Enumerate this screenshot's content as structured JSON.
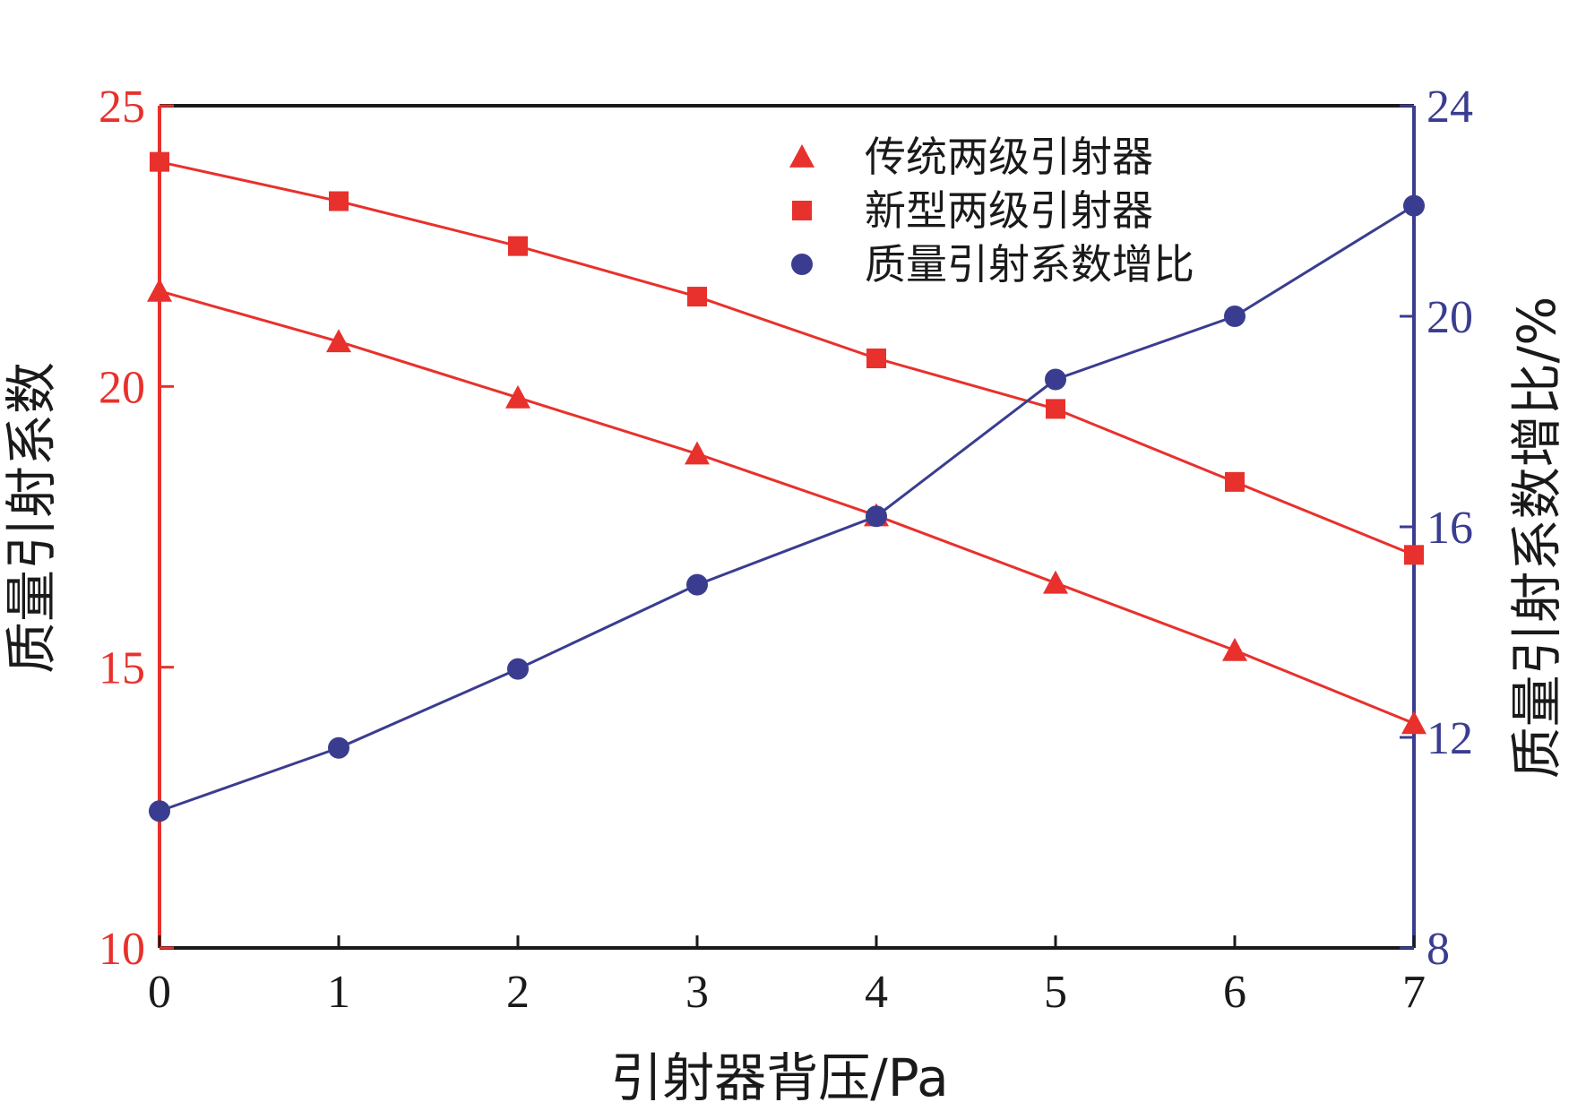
{
  "colors": {
    "left_axis": "#e8312c",
    "right_axis": "#3a3d8f",
    "frame": "#1a1a1a",
    "series_traditional": "#e8312c",
    "series_new": "#e8312c",
    "series_ratio": "#3a3d8f"
  },
  "chart_data": {
    "type": "line",
    "title": "",
    "xlabel": "引射器背压/Pa",
    "ylabel_left": "质量引射系数",
    "ylabel_right": "质量引射系数增比/%",
    "x": [
      0,
      1,
      2,
      3,
      4,
      5,
      6,
      7
    ],
    "xlim": [
      0,
      7
    ],
    "ylim_left": [
      10,
      25
    ],
    "ylim_right": [
      8,
      24
    ],
    "x_ticks": [
      "0",
      "1",
      "2",
      "3",
      "4",
      "5",
      "6",
      "7"
    ],
    "y_left_ticks": [
      "10",
      "15",
      "20",
      "25"
    ],
    "y_right_ticks": [
      "8",
      "12",
      "16",
      "20",
      "24"
    ],
    "legend_position": "top-right",
    "grid": false,
    "series": [
      {
        "name": "传统两级引射器",
        "axis": "left",
        "marker": "triangle",
        "color": "#e8312c",
        "values": [
          21.7,
          20.8,
          19.8,
          18.8,
          17.7,
          16.5,
          15.3,
          14.0
        ]
      },
      {
        "name": "新型两级引射器",
        "axis": "left",
        "marker": "square",
        "color": "#e8312c",
        "values": [
          24.0,
          23.3,
          22.5,
          21.6,
          20.5,
          19.6,
          18.3,
          17.0
        ]
      },
      {
        "name": "质量引射系数增比",
        "axis": "right",
        "marker": "circle",
        "color": "#3a3d8f",
        "values": [
          10.6,
          11.8,
          13.3,
          14.9,
          16.2,
          18.8,
          20.0,
          22.1
        ]
      }
    ]
  }
}
